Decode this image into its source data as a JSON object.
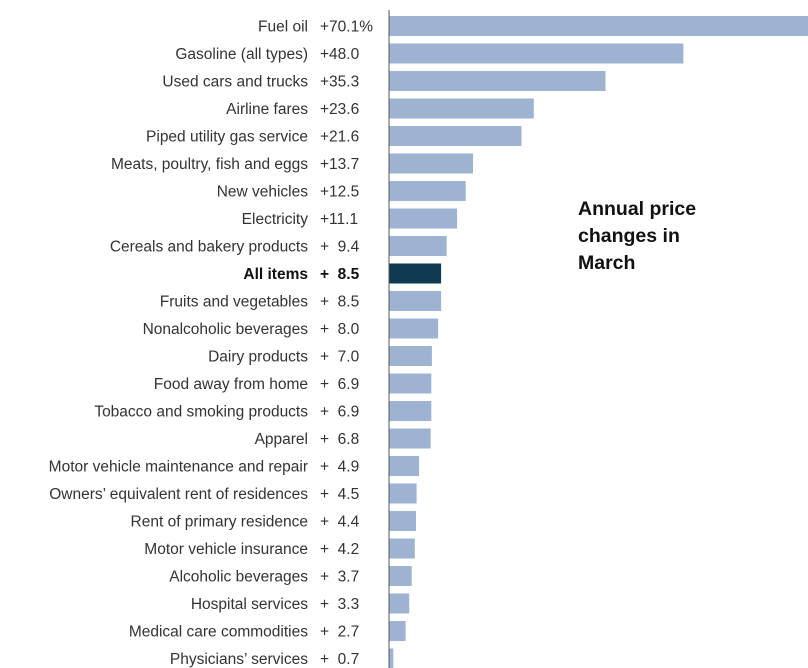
{
  "chart_data": {
    "type": "bar",
    "orientation": "horizontal",
    "title": "Annual price changes in March",
    "title_lines": [
      "Annual price",
      "changes in",
      "March"
    ],
    "grid": false,
    "highlight_category": "All items",
    "colors": {
      "bar": "#9db3d1",
      "highlight_bar": "#0e3a52",
      "text": "#333333",
      "axis": "#555555"
    },
    "categories": [
      "Fuel oil",
      "Gasoline (all types)",
      "Used cars and trucks",
      "Airline fares",
      "Piped utility gas service",
      "Meats, poultry, fish and eggs",
      "New vehicles",
      "Electricity",
      "Cereals and bakery products",
      "All items",
      "Fruits and vegetables",
      "Nonalcoholic beverages",
      "Dairy products",
      "Food away from home",
      "Tobacco and smoking products",
      "Apparel",
      "Motor vehicle maintenance and repair",
      "Owners’ equivalent rent of residences",
      "Rent of primary residence",
      "Motor vehicle insurance",
      "Alcoholic beverages",
      "Hospital services",
      "Medical care commodities",
      "Physicians’ services"
    ],
    "values": [
      70.1,
      48.0,
      35.3,
      23.6,
      21.6,
      13.7,
      12.5,
      11.1,
      9.4,
      8.5,
      8.5,
      8.0,
      7.0,
      6.9,
      6.9,
      6.8,
      4.9,
      4.5,
      4.4,
      4.2,
      3.7,
      3.3,
      2.7,
      0.7
    ],
    "value_labels": [
      "+70.1%",
      "+48.0",
      "+35.3",
      "+23.6",
      "+21.6",
      "+13.7",
      "+12.5",
      "+11.1",
      "+  9.4",
      "+  8.5",
      "+  8.5",
      "+  8.0",
      "+  7.0",
      "+  6.9",
      "+  6.9",
      "+  6.8",
      "+  4.9",
      "+  4.5",
      "+  4.4",
      "+  4.2",
      "+  3.7",
      "+  3.3",
      "+  2.7",
      "+  0.7"
    ]
  }
}
